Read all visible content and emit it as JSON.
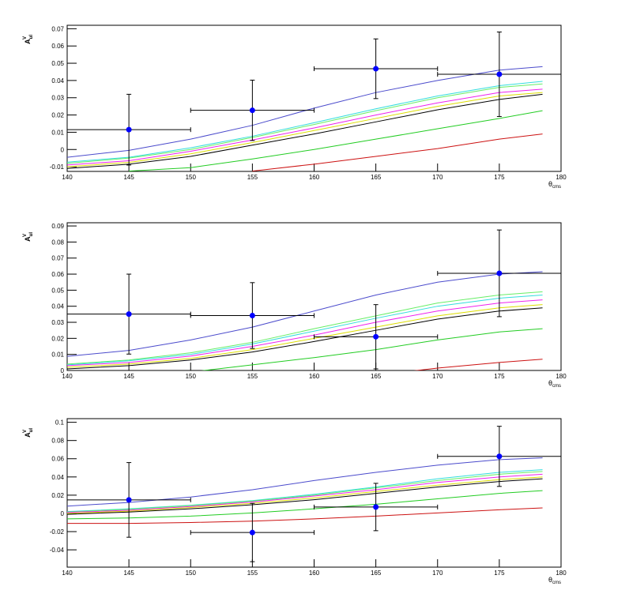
{
  "chart_data": [
    {
      "type": "line",
      "ylabel": "A",
      "ylabel_sub": "ul",
      "ylabel_sup": "V",
      "xlabel": "θ",
      "xlabel_sub": "cms",
      "xlim": [
        140,
        180
      ],
      "xticks": [
        140,
        145,
        150,
        155,
        160,
        165,
        170,
        175,
        180
      ],
      "ylim": [
        -0.0127,
        0.072
      ],
      "yticks": [
        -0.01,
        0,
        0.01,
        0.02,
        0.03,
        0.04,
        0.05,
        0.06,
        0.07
      ],
      "x": [
        140,
        145,
        150,
        155,
        160,
        165,
        170,
        175,
        178.5
      ],
      "series": [
        {
          "color": "#4b4bcc",
          "values": [
            -0.0045,
            -0.0005,
            0.006,
            0.014,
            0.024,
            0.033,
            0.04,
            0.046,
            0.048
          ]
        },
        {
          "color": "#33dddd",
          "values": [
            -0.0073,
            -0.0045,
            0.001,
            0.0077,
            0.0155,
            0.0236,
            0.031,
            0.037,
            0.0395
          ]
        },
        {
          "color": "#66ee66",
          "values": [
            -0.008,
            -0.005,
            0,
            0.007,
            0.0145,
            0.0225,
            0.03,
            0.036,
            0.038
          ]
        },
        {
          "color": "#ee22ee",
          "values": [
            -0.009,
            -0.0065,
            -0.001,
            0.0055,
            0.0125,
            0.02,
            0.027,
            0.033,
            0.035
          ]
        },
        {
          "color": "#dddd00",
          "values": [
            -0.01,
            -0.0075,
            -0.0025,
            0.004,
            0.011,
            0.018,
            0.025,
            0.031,
            0.033
          ]
        },
        {
          "color": "#000000",
          "values": [
            -0.011,
            -0.0085,
            -0.004,
            0.0025,
            0.009,
            0.016,
            0.023,
            0.029,
            0.032
          ]
        },
        {
          "color": "#22cc22",
          "values": [
            null,
            -0.0125,
            -0.0105,
            -0.0055,
            0,
            0.006,
            0.012,
            0.018,
            0.0225
          ]
        },
        {
          "color": "#cc1111",
          "values": [
            null,
            null,
            null,
            -0.0125,
            -0.0085,
            -0.004,
            0.0005,
            0.006,
            0.009
          ]
        }
      ],
      "points": {
        "color": "#0000ff",
        "x": [
          145,
          155,
          165,
          175
        ],
        "xerrors": [
          5,
          5,
          5,
          5
        ],
        "values": [
          0.0115,
          0.0227,
          0.0468,
          0.0436
        ],
        "errors": [
          0.0205,
          0.0175,
          0.0173,
          0.0245
        ]
      }
    },
    {
      "type": "line",
      "ylabel": "A",
      "ylabel_sub": "ul",
      "ylabel_sup": "V",
      "xlabel": "θ",
      "xlabel_sub": "cms",
      "xlim": [
        140,
        180
      ],
      "xticks": [
        140,
        145,
        150,
        155,
        160,
        165,
        170,
        175,
        180
      ],
      "ylim": [
        0,
        0.092
      ],
      "yticks": [
        0,
        0.01,
        0.02,
        0.03,
        0.04,
        0.05,
        0.06,
        0.07,
        0.08,
        0.09
      ],
      "x": [
        140,
        145,
        150,
        155,
        160,
        165,
        170,
        175,
        178.5
      ],
      "series": [
        {
          "color": "#4b4bcc",
          "values": [
            0.0088,
            0.0125,
            0.019,
            0.027,
            0.037,
            0.047,
            0.055,
            0.06,
            0.0615
          ]
        },
        {
          "color": "#66ee66",
          "values": [
            0.004,
            0.0065,
            0.011,
            0.0175,
            0.026,
            0.034,
            0.042,
            0.047,
            0.049
          ]
        },
        {
          "color": "#33dddd",
          "values": [
            0.0035,
            0.006,
            0.01,
            0.0165,
            0.0245,
            0.0325,
            0.04,
            0.045,
            0.047
          ]
        },
        {
          "color": "#ee22ee",
          "values": [
            0.003,
            0.005,
            0.009,
            0.015,
            0.022,
            0.03,
            0.037,
            0.042,
            0.044
          ]
        },
        {
          "color": "#dddd00",
          "values": [
            0.002,
            0.004,
            0.0075,
            0.013,
            0.02,
            0.027,
            0.034,
            0.039,
            0.041
          ]
        },
        {
          "color": "#000000",
          "values": [
            0.001,
            0.003,
            0.0065,
            0.0115,
            0.018,
            0.025,
            0.032,
            0.037,
            0.039
          ]
        },
        {
          "color": "#22cc22",
          "values": [
            null,
            null,
            -0.001,
            0.0035,
            0.008,
            0.013,
            0.019,
            0.024,
            0.026
          ]
        },
        {
          "color": "#cc1111",
          "values": [
            null,
            null,
            null,
            null,
            null,
            -0.003,
            0.0015,
            0.005,
            0.007
          ]
        }
      ],
      "points": {
        "color": "#0000ff",
        "x": [
          145,
          155,
          165,
          175
        ],
        "xerrors": [
          5,
          5,
          5,
          5
        ],
        "values": [
          0.0351,
          0.0342,
          0.021,
          0.0605
        ],
        "errors": [
          0.0249,
          0.0205,
          0.02,
          0.027
        ]
      }
    },
    {
      "type": "line",
      "ylabel": "A",
      "ylabel_sub": "ul",
      "ylabel_sup": "V",
      "xlabel": "θ",
      "xlabel_sub": "cms",
      "xlim": [
        140,
        180
      ],
      "xticks": [
        140,
        145,
        150,
        155,
        160,
        165,
        170,
        175,
        180
      ],
      "ylim": [
        -0.059,
        0.104
      ],
      "yticks": [
        -0.04,
        -0.02,
        0,
        0.02,
        0.04,
        0.06,
        0.08,
        0.1
      ],
      "x": [
        140,
        145,
        150,
        155,
        160,
        165,
        170,
        175,
        178.5
      ],
      "series": [
        {
          "color": "#4b4bcc",
          "values": [
            0.008,
            0.012,
            0.018,
            0.026,
            0.036,
            0.045,
            0.053,
            0.059,
            0.061
          ]
        },
        {
          "color": "#33dddd",
          "values": [
            0.002,
            0.005,
            0.009,
            0.014,
            0.021,
            0.029,
            0.038,
            0.045,
            0.048
          ]
        },
        {
          "color": "#66ee66",
          "values": [
            0.0015,
            0.0045,
            0.0085,
            0.0135,
            0.02,
            0.028,
            0.036,
            0.043,
            0.046
          ]
        },
        {
          "color": "#ee22ee",
          "values": [
            0.001,
            0.0035,
            0.0075,
            0.0125,
            0.019,
            0.026,
            0.034,
            0.04,
            0.043
          ]
        },
        {
          "color": "#dddd00",
          "values": [
            0,
            0.0025,
            0.0065,
            0.011,
            0.017,
            0.024,
            0.031,
            0.037,
            0.04
          ]
        },
        {
          "color": "#000000",
          "values": [
            -0.001,
            0.0015,
            0.005,
            0.0095,
            0.015,
            0.022,
            0.029,
            0.035,
            0.038
          ]
        },
        {
          "color": "#22cc22",
          "values": [
            -0.006,
            -0.005,
            -0.003,
            0.0005,
            0.005,
            0.01,
            0.016,
            0.022,
            0.025
          ]
        },
        {
          "color": "#cc1111",
          "values": [
            -0.011,
            -0.011,
            -0.01,
            -0.0085,
            -0.006,
            -0.003,
            0.0005,
            0.004,
            0.006
          ]
        }
      ],
      "points": {
        "color": "#0000ff",
        "x": [
          145,
          155,
          165,
          175
        ],
        "xerrors": [
          5,
          5,
          5,
          5
        ],
        "values": [
          0.0148,
          -0.021,
          0.007,
          0.0626
        ],
        "errors": [
          0.041,
          0.032,
          0.026,
          0.033
        ]
      }
    }
  ]
}
